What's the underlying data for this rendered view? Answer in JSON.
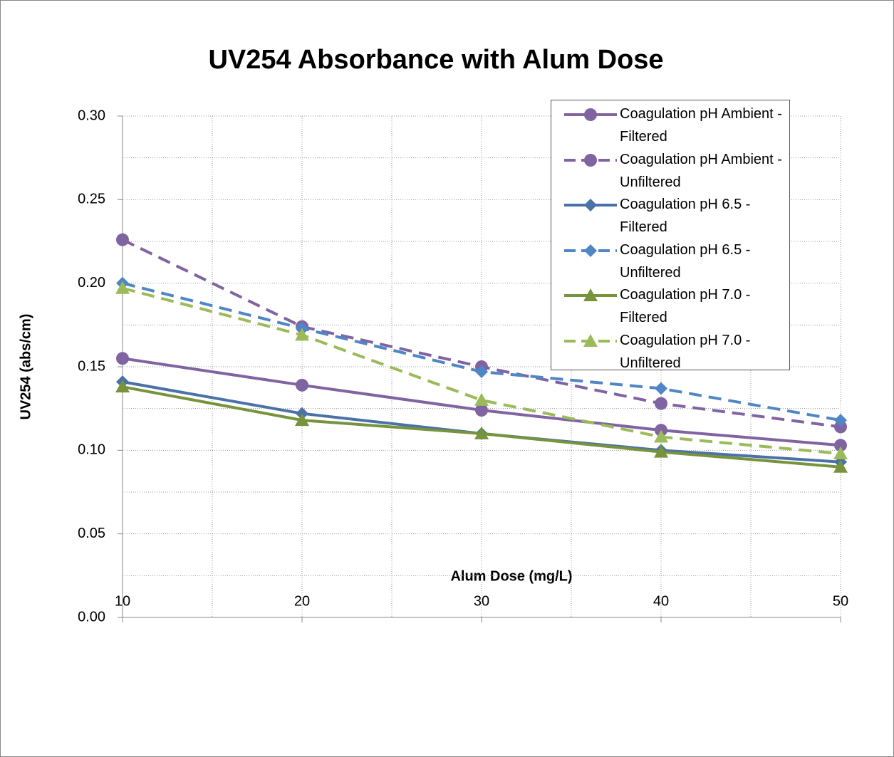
{
  "chart_data": {
    "type": "line",
    "title": "UV254 Absorbance with Alum Dose",
    "x_label": "Alum Dose (mg/L)",
    "y_label": "UV254 (abs/cm)",
    "x": [
      10,
      20,
      30,
      40,
      50
    ],
    "xlim": [
      10,
      50
    ],
    "xticks": [
      10,
      20,
      30,
      40,
      50
    ],
    "xminorticks": [
      15,
      25,
      35,
      45
    ],
    "ylim": [
      0,
      0.3
    ],
    "yticks": [
      {
        "value": 0,
        "label": "0.00"
      },
      {
        "value": 0.05,
        "label": "0.05"
      },
      {
        "value": 0.1,
        "label": "0.10"
      },
      {
        "value": 0.15,
        "label": "0.15"
      },
      {
        "value": 0.2,
        "label": "0.20"
      },
      {
        "value": 0.25,
        "label": "0.25"
      },
      {
        "value": 0.3,
        "label": "0.30"
      }
    ],
    "yminorticks": [
      0.025,
      0.075,
      0.125,
      0.175,
      0.225,
      0.275
    ],
    "grid": true,
    "legend": "upper right",
    "series": [
      {
        "name": "Coagulation pH Ambient - Filtered",
        "color": "#8064a2",
        "marker": "circle",
        "dashed": false,
        "values": [
          0.155,
          0.139,
          0.124,
          0.112,
          0.103
        ]
      },
      {
        "name": "Coagulation pH Ambient - Unfiltered",
        "color": "#8064a2",
        "marker": "circle",
        "dashed": true,
        "values": [
          0.226,
          0.174,
          0.15,
          0.128,
          0.114
        ]
      },
      {
        "name": "Coagulation pH 6.5 - Filtered",
        "color": "#4a72a8",
        "marker": "diamond",
        "dashed": false,
        "values": [
          0.141,
          0.122,
          0.11,
          0.1,
          0.093
        ]
      },
      {
        "name": "Coagulation pH 6.5 - Unfiltered",
        "color": "#4f86c6",
        "marker": "diamond",
        "dashed": true,
        "values": [
          0.2,
          0.173,
          0.147,
          0.137,
          0.118
        ]
      },
      {
        "name": "Coagulation pH 7.0 - Filtered",
        "color": "#77933c",
        "marker": "triangle",
        "dashed": false,
        "values": [
          0.138,
          0.118,
          0.11,
          0.099,
          0.09
        ]
      },
      {
        "name": "Coagulation pH 7.0 - Unfiltered",
        "color": "#9bbb59",
        "marker": "triangle",
        "dashed": true,
        "values": [
          0.197,
          0.169,
          0.13,
          0.108,
          0.098
        ]
      }
    ]
  }
}
